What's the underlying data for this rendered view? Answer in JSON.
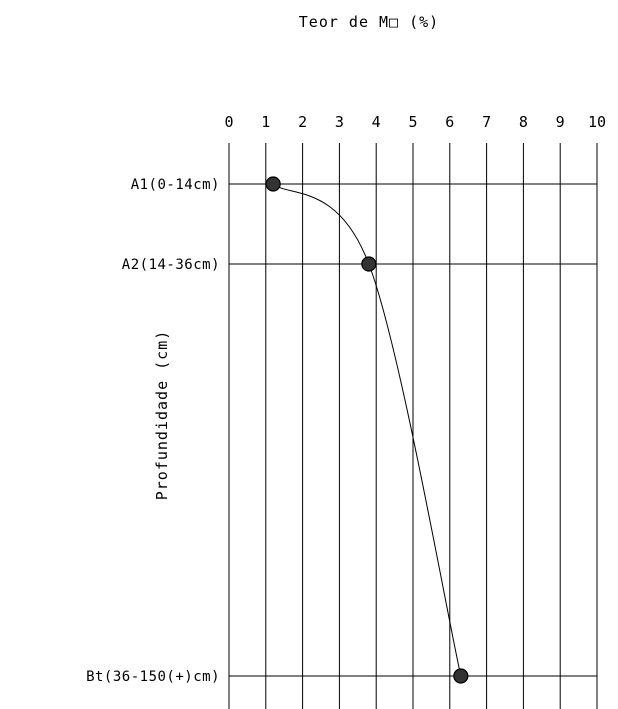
{
  "chart_data": {
    "type": "line",
    "title": "Teor de M□ (%)",
    "ylabel": "Profundidade (cm)",
    "xlabel": "",
    "xlim": [
      0,
      10
    ],
    "x_ticks": [
      "0",
      "1",
      "2",
      "3",
      "4",
      "5",
      "6",
      "7",
      "8",
      "9",
      "10"
    ],
    "x_axis_position": "top",
    "vertical_grid": true,
    "horizontal_grid_at_points": true,
    "series": [
      {
        "points": [
          {
            "label": "A1(0-14cm)",
            "x": 1.2
          },
          {
            "label": "A2(14-36cm)",
            "x": 3.8
          },
          {
            "label": "Bt(36-150(+)cm)",
            "x": 6.3
          }
        ]
      }
    ],
    "line_color": "#000000",
    "marker_color": "#333333"
  }
}
